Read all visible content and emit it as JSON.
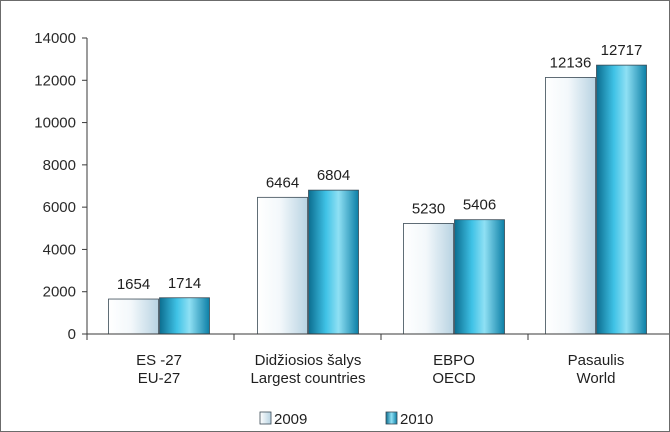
{
  "chart_data": {
    "type": "bar",
    "categories": [
      [
        "ES -27",
        "EU-27"
      ],
      [
        "Didžiosios šalys",
        "Largest countries"
      ],
      [
        "EBPO",
        "OECD"
      ],
      [
        "Pasaulis",
        "World"
      ]
    ],
    "series": [
      {
        "name": "2009",
        "values": [
          1654,
          6464,
          5230,
          12136
        ]
      },
      {
        "name": "2010",
        "values": [
          1714,
          6804,
          5406,
          12717
        ]
      }
    ],
    "ylim": [
      0,
      14000
    ],
    "yticks": [
      0,
      2000,
      4000,
      6000,
      8000,
      10000,
      12000,
      14000
    ],
    "title": "",
    "xlabel": "",
    "ylabel": "",
    "grid": false,
    "legend_position": "bottom",
    "colors": {
      "series_2009": "#e6f1f8",
      "series_2010": "#1e9fc8",
      "axis": "#3a3a3a"
    }
  }
}
